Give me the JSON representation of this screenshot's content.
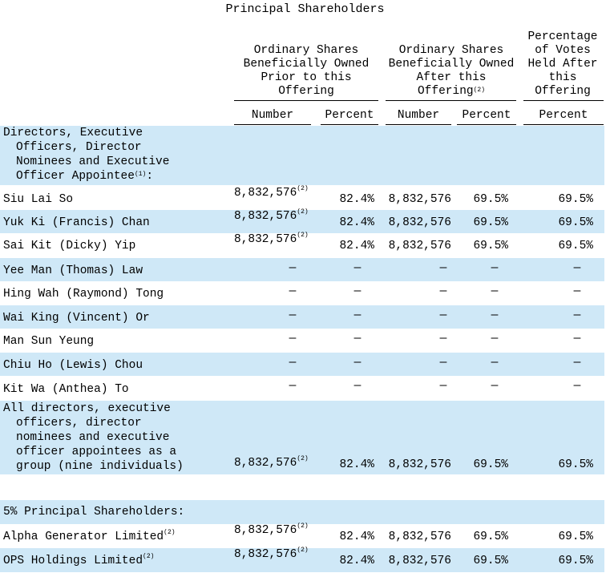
{
  "title": "Principal Shareholders",
  "header": {
    "group1": [
      "Ordinary Shares",
      "Beneficially Owned",
      "Prior to this",
      "Offering"
    ],
    "group2": [
      "Ordinary Shares",
      "Beneficially Owned",
      "After this",
      "Offering"
    ],
    "group2_note": "(2)",
    "group3": [
      "Percentage",
      "of Votes",
      "Held After",
      "this",
      "Offering"
    ],
    "sub": [
      "Number",
      "Percent",
      "Number",
      "Percent",
      "Percent"
    ]
  },
  "sections": {
    "directors": {
      "lines": [
        "Directors, Executive",
        "Officers, Director",
        "Nominees and Executive",
        "Officer Appointee"
      ],
      "note": "(1)",
      "suffix": ":"
    },
    "principal": {
      "label": "5% Principal Shareholders:"
    }
  },
  "rows": [
    {
      "name": "Siu Lai So",
      "name_note": "",
      "c1": "8,832,576",
      "c1_note": "(2)",
      "c2": "82.4%",
      "c3": "8,832,576",
      "c4": "69.5%",
      "c5": "69.5%"
    },
    {
      "name": "Yuk Ki (Francis) Chan",
      "name_note": "",
      "c1": "8,832,576",
      "c1_note": "(2)",
      "c2": "82.4%",
      "c3": "8,832,576",
      "c4": "69.5%",
      "c5": "69.5%"
    },
    {
      "name": "Sai Kit (Dicky) Yip",
      "name_note": "",
      "c1": "8,832,576",
      "c1_note": "(2)",
      "c2": "82.4%",
      "c3": "8,832,576",
      "c4": "69.5%",
      "c5": "69.5%"
    },
    {
      "name": "Yee Man (Thomas) Law",
      "dash": "—"
    },
    {
      "name": "Hing Wah (Raymond) Tong",
      "dash": "—"
    },
    {
      "name": "Wai King (Vincent) Or",
      "dash": "—"
    },
    {
      "name": "Man Sun Yeung",
      "dash": "—"
    },
    {
      "name": "Chiu Ho (Lewis) Chou",
      "dash": "—"
    },
    {
      "name": "Kit Wa (Anthea) To",
      "dash": "—"
    }
  ],
  "group_row": {
    "lines": [
      "All directors, executive",
      "officers, director",
      "nominees and executive",
      "officer appointees as a",
      "group (nine individuals)"
    ],
    "c1": "8,832,576",
    "c1_note": "(2)",
    "c2": "82.4%",
    "c3": "8,832,576",
    "c4": "69.5%",
    "c5": "69.5%"
  },
  "principal_rows": [
    {
      "name": "Alpha Generator Limited",
      "name_note": "(2)",
      "c1": "8,832,576",
      "c1_note": "(2)",
      "c2": "82.4%",
      "c3": "8,832,576",
      "c4": "69.5%",
      "c5": "69.5%"
    },
    {
      "name": "OPS Holdings Limited",
      "name_note": "(2)",
      "c1": "8,832,576",
      "c1_note": "(2)",
      "c2": "82.4%",
      "c3": "8,832,576",
      "c4": "69.5%",
      "c5": "69.5%"
    }
  ]
}
